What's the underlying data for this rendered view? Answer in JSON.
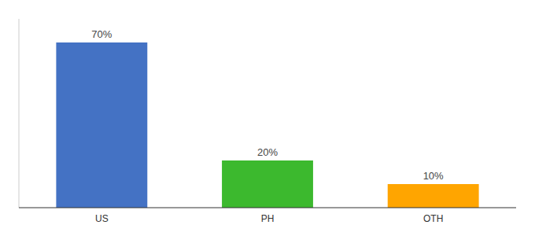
{
  "chart_data": {
    "type": "bar",
    "categories": [
      "US",
      "PH",
      "OTH"
    ],
    "values": [
      70,
      20,
      10
    ],
    "value_labels": [
      "70%",
      "20%",
      "10%"
    ],
    "colors": [
      "#4472C4",
      "#3CB92E",
      "#FFA500"
    ],
    "ylim": [
      0,
      80
    ],
    "data_labels": true,
    "tick_labels": "x"
  }
}
